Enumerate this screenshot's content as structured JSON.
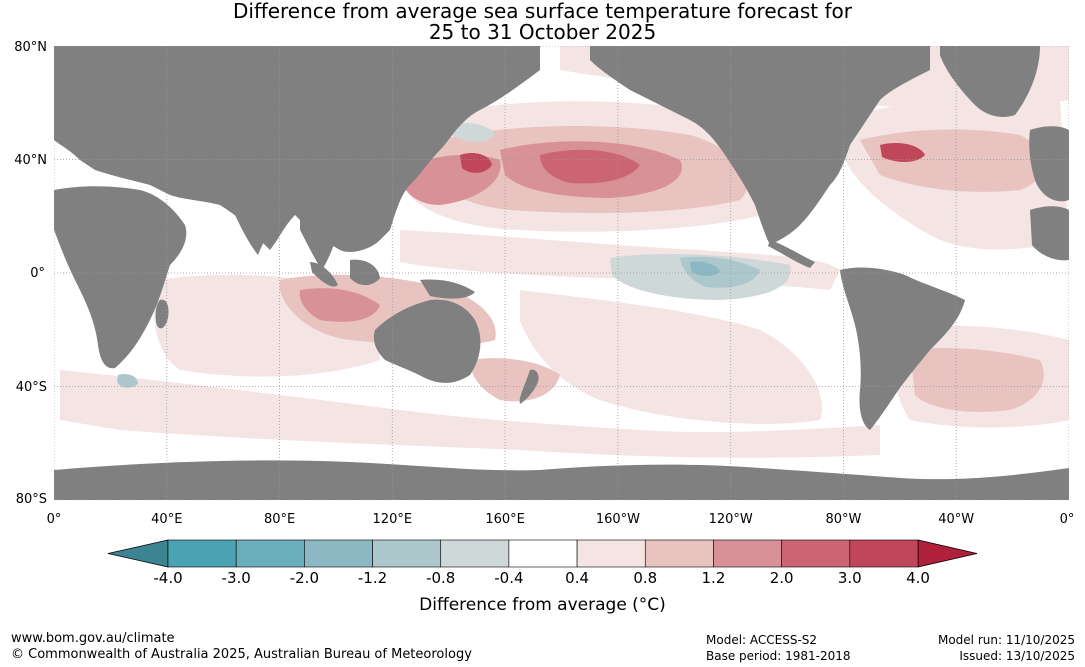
{
  "title": {
    "line1": "Difference from average sea surface temperature forecast for",
    "line2": "25 to 31 October 2025"
  },
  "axes": {
    "lat_labels": [
      "80°N",
      "40°N",
      "0°",
      "40°S",
      "80°S"
    ],
    "lat_values": [
      80,
      40,
      0,
      -40,
      -80
    ],
    "lon_labels": [
      "0°",
      "40°E",
      "80°E",
      "120°E",
      "160°E",
      "160°W",
      "120°W",
      "80°W",
      "40°W",
      "0°"
    ],
    "lon_values": [
      0,
      40,
      80,
      120,
      160,
      200,
      240,
      280,
      320,
      360
    ]
  },
  "colorbar": {
    "title": "Difference from average (°C)",
    "tick_labels": [
      "-4.0",
      "-3.0",
      "-2.0",
      "-1.2",
      "-0.8",
      "-0.4",
      "0.4",
      "0.8",
      "1.2",
      "2.0",
      "3.0",
      "4.0"
    ],
    "colors": [
      "#4aa2b2",
      "#6aaebb",
      "#8bb8c3",
      "#adc8cc",
      "#cfd8d9",
      "#ffffff",
      "#f4e4e3",
      "#e8c3c0",
      "#d99198",
      "#ca6571",
      "#c0465a"
    ],
    "under_color": "#3c8491",
    "over_color": "#b0203b"
  },
  "colors": {
    "land": "#808080",
    "ocean": "#ffffff",
    "grid": "#999999"
  },
  "footer": {
    "website": "www.bom.gov.au/climate",
    "copyright": "© Commonwealth of Australia 2025, Australian Bureau of Meteorology",
    "model": "Model: ACCESS-S2",
    "base_period": "Base period: 1981-2018",
    "model_run": "Model run: 11/10/2025",
    "issued": "Issued: 13/10/2025"
  }
}
